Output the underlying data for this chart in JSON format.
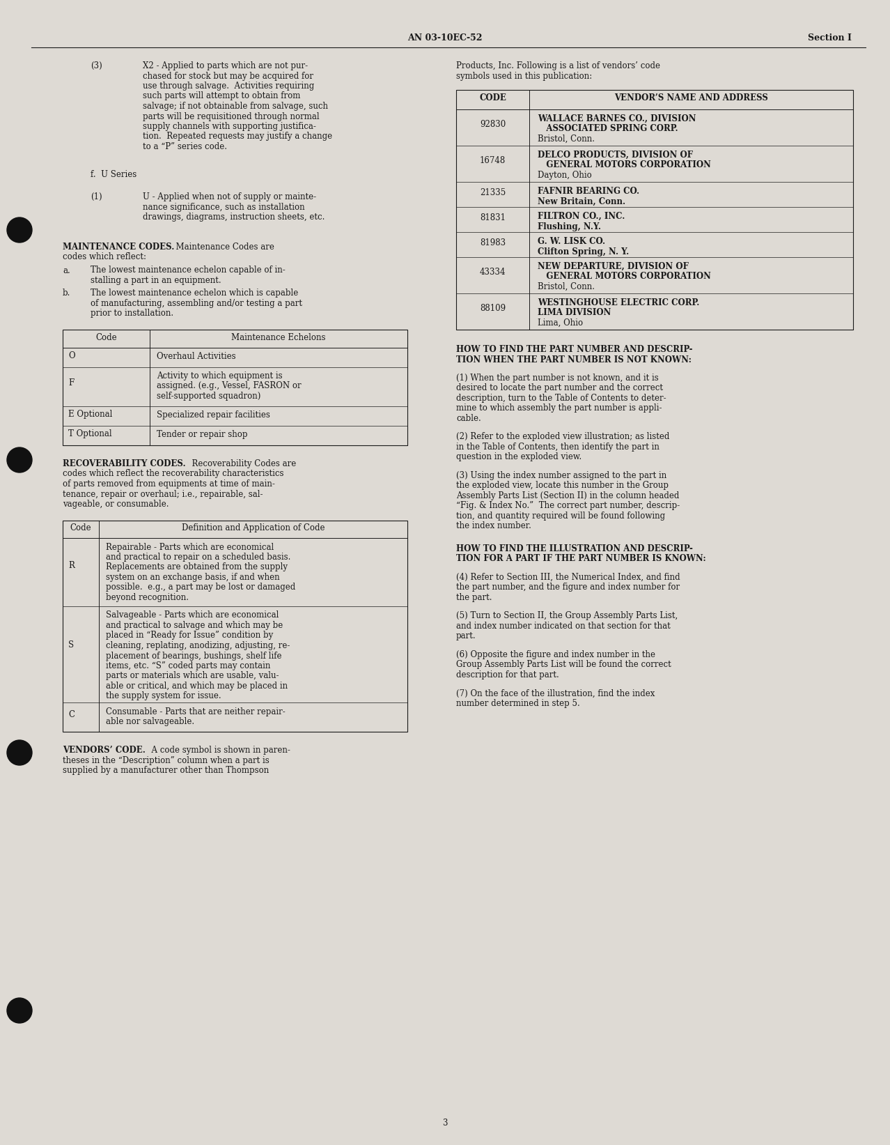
{
  "page_bg": "#dedad4",
  "text_color": "#1a1a1a",
  "header_text_left": "AN 03-10EC-52",
  "header_text_right": "Section I",
  "page_number": "3"
}
